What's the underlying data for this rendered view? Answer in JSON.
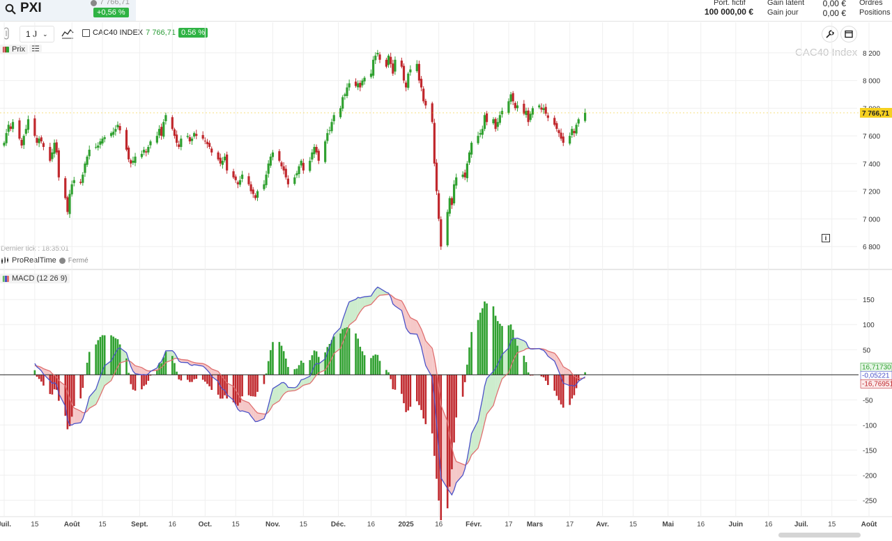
{
  "header": {
    "symbol": "PXI",
    "quote_price": "7 766,71",
    "quote_change": "+0,56 %",
    "port_label": "Port. fictif",
    "port_value": "100 000,00 €",
    "gain_latent_label": "Gain latent",
    "gain_jour_label": "Gain jour",
    "gain_latent_value": "0,00 €",
    "gain_jour_value": "0,00 €",
    "orders_label": "Ordres",
    "positions_label": "Positions"
  },
  "toolbar": {
    "timeframe": "1 J",
    "instrument_name": "CAC40 INDEX",
    "instrument_price": "7 766,71",
    "instrument_change": "0.56 %"
  },
  "price_panel": {
    "legend": "Prix",
    "watermark": "CAC40 Index",
    "last_tick": "Dernier tick : 18:35:01",
    "provider": "ProRealTime",
    "market_status": "Fermé",
    "current_price_label": "7 766,71"
  },
  "macd_panel": {
    "legend": "MACD (12 26 9)",
    "value_hist": "16,71730",
    "value_macd": "-0,05221",
    "value_signal": "-16,76951"
  },
  "colors": {
    "up": "#2fa02f",
    "down": "#c0282d",
    "macd_line": "#4b52c8",
    "signal_line": "#e07070",
    "fill_up": "#cdeccd",
    "fill_down": "#f5c8c8",
    "price_badge": "#f5d020"
  },
  "chart_data": [
    {
      "type": "candlestick",
      "title": "CAC40 Index",
      "x_range": [
        "2024-07-01",
        "2025-08-01"
      ],
      "ylim": [
        6720,
        8280
      ],
      "y_ticks": [
        6800,
        7000,
        7200,
        7400,
        7600,
        7800,
        8000,
        8200
      ],
      "x_ticks": [
        {
          "date": "2024-07-01",
          "label": "Juil."
        },
        {
          "date": "2024-07-15",
          "label": "15"
        },
        {
          "date": "2024-08-01",
          "label": "Août"
        },
        {
          "date": "2024-08-15",
          "label": "15"
        },
        {
          "date": "2024-09-01",
          "label": "Sept."
        },
        {
          "date": "2024-09-16",
          "label": "16"
        },
        {
          "date": "2024-10-01",
          "label": "Oct."
        },
        {
          "date": "2024-10-15",
          "label": "15"
        },
        {
          "date": "2024-11-01",
          "label": "Nov."
        },
        {
          "date": "2024-11-15",
          "label": "15"
        },
        {
          "date": "2024-12-01",
          "label": "Déc."
        },
        {
          "date": "2024-12-16",
          "label": "16"
        },
        {
          "date": "2025-01-01",
          "label": "2025"
        },
        {
          "date": "2025-01-16",
          "label": "16"
        },
        {
          "date": "2025-02-01",
          "label": "Févr."
        },
        {
          "date": "2025-02-17",
          "label": "17"
        },
        {
          "date": "2025-03-01",
          "label": "Mars"
        },
        {
          "date": "2025-03-17",
          "label": "17"
        },
        {
          "date": "2025-04-01",
          "label": "Avr."
        },
        {
          "date": "2025-04-15",
          "label": "15"
        },
        {
          "date": "2025-05-01",
          "label": "Mai"
        },
        {
          "date": "2025-05-16",
          "label": "16"
        },
        {
          "date": "2025-06-01",
          "label": "Juin"
        },
        {
          "date": "2025-06-16",
          "label": "16"
        },
        {
          "date": "2025-07-01",
          "label": "Juil."
        },
        {
          "date": "2025-07-15",
          "label": "15"
        },
        {
          "date": "2025-08-01",
          "label": "Août"
        }
      ],
      "first_date": "2024-07-01",
      "closes": [
        7550,
        7620,
        7680,
        7650,
        7700,
        7580,
        7530,
        7600,
        7650,
        7720,
        7600,
        7550,
        7580,
        7560,
        7520,
        7420,
        7480,
        7550,
        7480,
        7300,
        7150,
        7050,
        7180,
        7250,
        7280,
        7260,
        7320,
        7400,
        7450,
        7500,
        7520,
        7530,
        7560,
        7580,
        7590,
        7620,
        7630,
        7650,
        7680,
        7640,
        7500,
        7430,
        7400,
        7420,
        7450,
        7470,
        7500,
        7480,
        7520,
        7560,
        7600,
        7650,
        7600,
        7700,
        7750,
        7650,
        7600,
        7550,
        7520,
        7580,
        7600,
        7560,
        7580,
        7620,
        7600,
        7580,
        7560,
        7540,
        7520,
        7480,
        7430,
        7400,
        7420,
        7450,
        7350,
        7300,
        7280,
        7250,
        7280,
        7320,
        7250,
        7200,
        7180,
        7150,
        7200,
        7250,
        7320,
        7400,
        7450,
        7480,
        7420,
        7380,
        7350,
        7300,
        7250,
        7300,
        7330,
        7380,
        7420,
        7350,
        7420,
        7480,
        7520,
        7480,
        7420,
        7560,
        7620,
        7640,
        7700,
        7750,
        7800,
        7880,
        7900,
        7950,
        7980,
        7960,
        7980,
        7950,
        8000,
        8020,
        8050,
        8150,
        8180,
        8200,
        8150,
        8100,
        8180,
        8120,
        8050,
        8150,
        8100,
        8000,
        7950,
        8050,
        8080,
        8120,
        8000,
        7950,
        7850,
        7820,
        7700,
        7400,
        7200,
        7000,
        6800,
        7050,
        7150,
        7100,
        7250,
        7300,
        7320,
        7300,
        7400,
        7480,
        7550,
        7600,
        7620,
        7650,
        7750,
        7700,
        7720,
        7650,
        7700,
        7750,
        7780,
        7850,
        7900,
        7850,
        7800,
        7820,
        7760,
        7780,
        7700,
        7760,
        7800,
        7820,
        7790,
        7800,
        7760,
        7730,
        7680,
        7650,
        7620,
        7580,
        7550,
        7600,
        7650,
        7620,
        7680,
        7720,
        7766.71
      ],
      "last_close": 7766.71
    },
    {
      "type": "macd",
      "title": "MACD (12 26 9)",
      "ylim": [
        -280,
        185
      ],
      "y_ticks": [
        150,
        100,
        50,
        -50,
        -100,
        -150,
        -200,
        -250
      ],
      "last_values": {
        "histogram": 16.7173,
        "macd": -0.05221,
        "signal": -16.76951
      }
    }
  ]
}
